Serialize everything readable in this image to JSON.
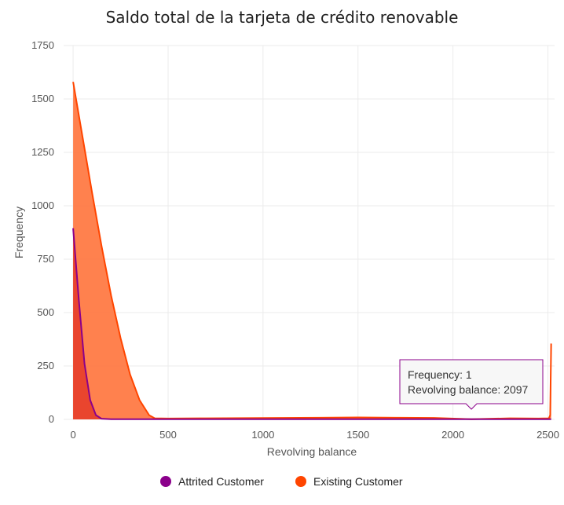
{
  "chart_data": {
    "type": "area",
    "title": "Saldo total de la tarjeta de crédito renovable",
    "xlabel": "Revolving balance",
    "ylabel": "Frequency",
    "xlim": [
      -50,
      2535
    ],
    "ylim": [
      0,
      1750
    ],
    "x_ticks": [
      0,
      500,
      1000,
      1500,
      2000,
      2500
    ],
    "y_ticks": [
      0,
      250,
      500,
      750,
      1000,
      1250,
      1500,
      1750
    ],
    "grid": true,
    "legend_position": "bottom",
    "series": [
      {
        "name": "Attrited Customer",
        "color": "#8B008B",
        "fill": "#E8412C",
        "points": [
          [
            0,
            895
          ],
          [
            30,
            560
          ],
          [
            60,
            260
          ],
          [
            90,
            90
          ],
          [
            120,
            20
          ],
          [
            150,
            3
          ],
          [
            200,
            1
          ],
          [
            500,
            1
          ],
          [
            1000,
            1
          ],
          [
            1500,
            1
          ],
          [
            2000,
            1
          ],
          [
            2500,
            1
          ],
          [
            2517,
            1
          ]
        ]
      },
      {
        "name": "Existing Customer",
        "color": "#FF4500",
        "fill": "#FF7A45",
        "points": [
          [
            0,
            1580
          ],
          [
            50,
            1320
          ],
          [
            100,
            1060
          ],
          [
            150,
            810
          ],
          [
            200,
            580
          ],
          [
            250,
            380
          ],
          [
            300,
            210
          ],
          [
            350,
            90
          ],
          [
            400,
            20
          ],
          [
            430,
            5
          ],
          [
            500,
            4
          ],
          [
            700,
            5
          ],
          [
            900,
            6
          ],
          [
            1100,
            7
          ],
          [
            1300,
            8
          ],
          [
            1500,
            9
          ],
          [
            1700,
            8
          ],
          [
            1900,
            7
          ],
          [
            2097,
            1
          ],
          [
            2300,
            5
          ],
          [
            2450,
            4
          ],
          [
            2505,
            5
          ],
          [
            2512,
            20
          ],
          [
            2517,
            355
          ]
        ]
      }
    ],
    "tooltip": {
      "freq_label": "Frequency: 1",
      "x_label": "Revolving balance: 2097",
      "anchor_x": 2097,
      "anchor_y": 1
    }
  }
}
